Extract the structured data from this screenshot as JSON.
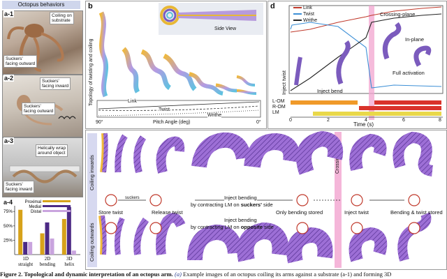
{
  "panel_a": {
    "title": "Octopus behaviors",
    "a1": {
      "label": "a-1",
      "tags": [
        "Coiling on\nsubstrate",
        "Suckers'\nfacing outward"
      ]
    },
    "a2": {
      "label": "a-2",
      "tags": [
        "Suckers'\nfacing inward",
        "Suckers'\nfacing outward"
      ]
    },
    "a3": {
      "label": "a-3",
      "tags": [
        "Helically wrap\naround object",
        "Suckers'\nfacing inward"
      ]
    },
    "a4": {
      "label": "a-4"
    }
  },
  "panel_b": {
    "label": "b",
    "side_view": "Side View",
    "y_axis_title": "Topology of twisting and coiling",
    "x_axis_title": "Pitch Angle (deg)",
    "tick_left": "90°",
    "tick_right": "0°",
    "curve_labels": [
      "Link",
      "Twist",
      "Writhe"
    ]
  },
  "panel_d": {
    "label": "d",
    "legend": [
      "Link",
      "Twist",
      "Writhe"
    ],
    "annotations": [
      "Crossing-plane",
      "In-plane",
      "Full activation",
      "Inject twist",
      "Inject bend"
    ],
    "rows": [
      "L-OM",
      "R-OM",
      "LM"
    ],
    "x_ticks": [
      "0",
      "2",
      "4",
      "6",
      "8"
    ],
    "x_label": "Time (s)"
  },
  "panel_c": {
    "label": "c",
    "row_top": "Coiling inwards",
    "row_bottom": "Coiling outwards",
    "crossing_plane": "Crossing-plane",
    "suckers_label": "suckers",
    "inject_bending": "Inject bending",
    "by_contracting_top_pre": "by contracting LM on ",
    "by_contracting_top_bold": "suckers'",
    "by_contracting_top_post": " side",
    "by_contracting_bottom_pre": "by contracting LM on ",
    "by_contracting_bottom_bold": "opposite",
    "by_contracting_bottom_post": " side",
    "steps": [
      "Store twist",
      "Release twist",
      "Only bending stored",
      "Inject twist",
      "Bending & twist stored"
    ]
  },
  "chart_data": {
    "type": "bar",
    "categories": [
      "1D straight",
      "2D bending",
      "3D helix"
    ],
    "series": [
      {
        "name": "Proximal",
        "values": [
          0.78,
          0.37,
          0.62
        ]
      },
      {
        "name": "Medial",
        "values": [
          0.22,
          0.56,
          0.83
        ]
      },
      {
        "name": "Distal",
        "values": [
          0.22,
          0.28,
          0.07
        ]
      }
    ],
    "yticks": [
      "25%",
      "50%",
      "75%"
    ],
    "ylim": [
      0,
      0.85
    ],
    "colors": [
      "#d7a21a",
      "#4c2a85",
      "#c9a4de"
    ]
  },
  "caption": {
    "lead": "Figure 2. Topological and dynamic interpretation of an octopus arm.",
    "part": "(a)",
    "rest": " Example images of an octopus coiling its arms against a substrate (a-1) and forming 3D"
  }
}
